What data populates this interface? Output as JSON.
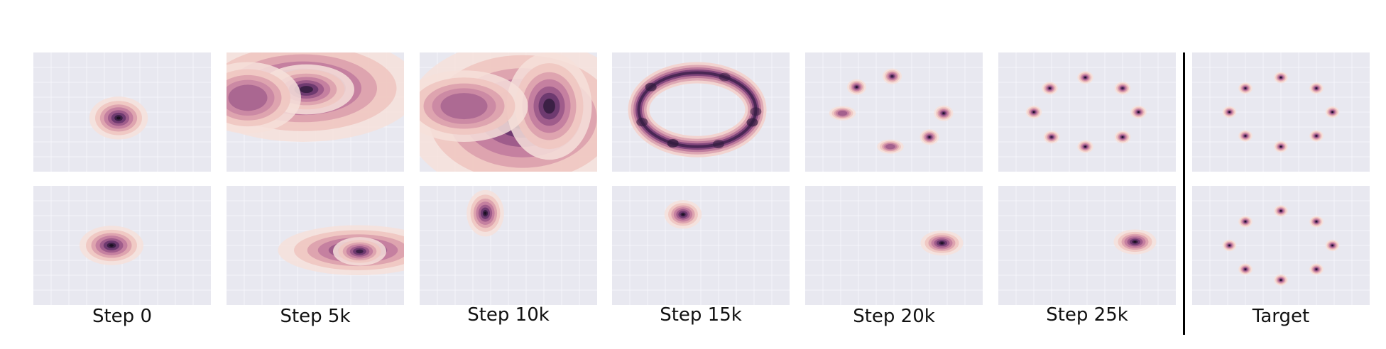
{
  "figure": {
    "columns": [
      {
        "label": "Step 0"
      },
      {
        "label": "Step 5k"
      },
      {
        "label": "Step 10k"
      },
      {
        "label": "Step 15k"
      },
      {
        "label": "Step 20k"
      },
      {
        "label": "Step 25k"
      },
      {
        "label": "Target"
      }
    ]
  },
  "chart_data": [
    {
      "type": "heatmap",
      "description_of_content": "density",
      "panel": "top-step-0",
      "row": "top",
      "column": "Step 0",
      "modes": [
        {
          "x": 0.48,
          "y": 0.55,
          "sx": 0.055,
          "sy": 0.06,
          "w": 1
        }
      ],
      "xlim": [
        0,
        1
      ],
      "ylim": [
        0,
        1
      ],
      "grid": true
    },
    {
      "type": "heatmap",
      "panel": "top-step-5k",
      "row": "top",
      "column": "Step 5k",
      "modes": [
        {
          "x": 0.43,
          "y": 0.3,
          "sx": 0.22,
          "sy": 0.15,
          "w": 1.0
        },
        {
          "x": 0.45,
          "y": 0.31,
          "sx": 0.09,
          "sy": 0.07,
          "w": 0.7
        },
        {
          "x": 0.12,
          "y": 0.38,
          "sx": 0.1,
          "sy": 0.1,
          "w": 0.35
        }
      ],
      "xlim": [
        0,
        1
      ],
      "ylim": [
        0,
        1
      ],
      "grid": true
    },
    {
      "type": "heatmap",
      "panel": "top-step-10k",
      "row": "top",
      "column": "Step 10k",
      "modes": [
        {
          "x": 0.58,
          "y": 0.55,
          "sx": 0.22,
          "sy": 0.22,
          "w": 1.0
        },
        {
          "x": 0.73,
          "y": 0.45,
          "sx": 0.08,
          "sy": 0.15,
          "w": 0.7
        },
        {
          "x": 0.25,
          "y": 0.45,
          "sx": 0.12,
          "sy": 0.1,
          "w": 0.3
        }
      ],
      "xlim": [
        0,
        1
      ],
      "ylim": [
        0,
        1
      ],
      "grid": true
    },
    {
      "type": "heatmap",
      "panel": "top-step-15k",
      "row": "top",
      "column": "Step 15k",
      "ring": {
        "cx": 0.48,
        "cy": 0.48,
        "rx": 0.33,
        "ry": 0.31,
        "width": 0.05
      },
      "xlim": [
        0,
        1
      ],
      "ylim": [
        0,
        1
      ],
      "grid": true
    },
    {
      "type": "heatmap",
      "panel": "top-step-20k",
      "row": "top",
      "column": "Step 20k",
      "modes": [
        {
          "x": 0.29,
          "y": 0.29,
          "sx": 0.018,
          "sy": 0.022,
          "w": 1
        },
        {
          "x": 0.49,
          "y": 0.2,
          "sx": 0.018,
          "sy": 0.022,
          "w": 0.8
        },
        {
          "x": 0.78,
          "y": 0.51,
          "sx": 0.018,
          "sy": 0.022,
          "w": 0.9
        },
        {
          "x": 0.7,
          "y": 0.71,
          "sx": 0.018,
          "sy": 0.022,
          "w": 1
        },
        {
          "x": 0.48,
          "y": 0.79,
          "sx": 0.025,
          "sy": 0.02,
          "w": 0.5
        },
        {
          "x": 0.21,
          "y": 0.51,
          "sx": 0.025,
          "sy": 0.02,
          "w": 0.5
        }
      ],
      "xlim": [
        0,
        1
      ],
      "ylim": [
        0,
        1
      ],
      "grid": true
    },
    {
      "type": "heatmap",
      "panel": "top-step-25k",
      "row": "top",
      "column": "Step 25k",
      "modes": [
        {
          "x": 0.29,
          "y": 0.3,
          "sx": 0.015,
          "sy": 0.018,
          "w": 1
        },
        {
          "x": 0.49,
          "y": 0.21,
          "sx": 0.015,
          "sy": 0.018,
          "w": 1
        },
        {
          "x": 0.7,
          "y": 0.3,
          "sx": 0.015,
          "sy": 0.018,
          "w": 0.8
        },
        {
          "x": 0.79,
          "y": 0.5,
          "sx": 0.015,
          "sy": 0.018,
          "w": 1
        },
        {
          "x": 0.7,
          "y": 0.71,
          "sx": 0.015,
          "sy": 0.018,
          "w": 1
        },
        {
          "x": 0.49,
          "y": 0.79,
          "sx": 0.015,
          "sy": 0.018,
          "w": 0.9
        },
        {
          "x": 0.3,
          "y": 0.71,
          "sx": 0.015,
          "sy": 0.018,
          "w": 0.8
        },
        {
          "x": 0.2,
          "y": 0.5,
          "sx": 0.015,
          "sy": 0.018,
          "w": 0.9
        }
      ],
      "xlim": [
        0,
        1
      ],
      "ylim": [
        0,
        1
      ],
      "grid": true
    },
    {
      "type": "heatmap",
      "panel": "top-target",
      "row": "top",
      "column": "Target",
      "modes": [
        {
          "x": 0.3,
          "y": 0.3,
          "sx": 0.013,
          "sy": 0.016,
          "w": 1
        },
        {
          "x": 0.5,
          "y": 0.21,
          "sx": 0.013,
          "sy": 0.016,
          "w": 1
        },
        {
          "x": 0.7,
          "y": 0.3,
          "sx": 0.013,
          "sy": 0.016,
          "w": 1
        },
        {
          "x": 0.79,
          "y": 0.5,
          "sx": 0.013,
          "sy": 0.016,
          "w": 1
        },
        {
          "x": 0.7,
          "y": 0.7,
          "sx": 0.013,
          "sy": 0.016,
          "w": 1
        },
        {
          "x": 0.5,
          "y": 0.79,
          "sx": 0.013,
          "sy": 0.016,
          "w": 1
        },
        {
          "x": 0.3,
          "y": 0.7,
          "sx": 0.013,
          "sy": 0.016,
          "w": 1
        },
        {
          "x": 0.21,
          "y": 0.5,
          "sx": 0.013,
          "sy": 0.016,
          "w": 1
        }
      ],
      "xlim": [
        0,
        1
      ],
      "ylim": [
        0,
        1
      ],
      "grid": true
    },
    {
      "type": "heatmap",
      "panel": "bottom-step-0",
      "row": "bottom",
      "column": "Step 0",
      "modes": [
        {
          "x": 0.44,
          "y": 0.5,
          "sx": 0.06,
          "sy": 0.055,
          "w": 1
        }
      ],
      "xlim": [
        0,
        1
      ],
      "ylim": [
        0,
        1
      ],
      "grid": true
    },
    {
      "type": "heatmap",
      "panel": "bottom-step-5k",
      "row": "bottom",
      "column": "Step 5k",
      "modes": [
        {
          "x": 0.74,
          "y": 0.54,
          "sx": 0.15,
          "sy": 0.07,
          "w": 1
        },
        {
          "x": 0.75,
          "y": 0.55,
          "sx": 0.05,
          "sy": 0.04,
          "w": 0.7
        }
      ],
      "xlim": [
        0,
        1
      ],
      "ylim": [
        0,
        1
      ],
      "grid": true
    },
    {
      "type": "heatmap",
      "panel": "bottom-step-10k",
      "row": "bottom",
      "column": "Step 10k",
      "modes": [
        {
          "x": 0.37,
          "y": 0.23,
          "sx": 0.035,
          "sy": 0.065,
          "w": 1
        }
      ],
      "xlim": [
        0,
        1
      ],
      "ylim": [
        0,
        1
      ],
      "grid": true
    },
    {
      "type": "heatmap",
      "panel": "bottom-step-15k",
      "row": "bottom",
      "column": "Step 15k",
      "modes": [
        {
          "x": 0.4,
          "y": 0.24,
          "sx": 0.035,
          "sy": 0.04,
          "w": 1
        }
      ],
      "xlim": [
        0,
        1
      ],
      "ylim": [
        0,
        1
      ],
      "grid": true
    },
    {
      "type": "heatmap",
      "panel": "bottom-step-20k",
      "row": "bottom",
      "column": "Step 20k",
      "modes": [
        {
          "x": 0.77,
          "y": 0.48,
          "sx": 0.04,
          "sy": 0.035,
          "w": 1
        }
      ],
      "xlim": [
        0,
        1
      ],
      "ylim": [
        0,
        1
      ],
      "grid": true
    },
    {
      "type": "heatmap",
      "panel": "bottom-step-25k",
      "row": "bottom",
      "column": "Step 25k",
      "modes": [
        {
          "x": 0.77,
          "y": 0.47,
          "sx": 0.04,
          "sy": 0.035,
          "w": 1
        }
      ],
      "xlim": [
        0,
        1
      ],
      "ylim": [
        0,
        1
      ],
      "grid": true
    },
    {
      "type": "heatmap",
      "panel": "bottom-target",
      "row": "bottom",
      "column": "Target",
      "modes": [
        {
          "x": 0.3,
          "y": 0.3,
          "sx": 0.013,
          "sy": 0.016,
          "w": 1
        },
        {
          "x": 0.5,
          "y": 0.21,
          "sx": 0.013,
          "sy": 0.016,
          "w": 1
        },
        {
          "x": 0.7,
          "y": 0.3,
          "sx": 0.013,
          "sy": 0.016,
          "w": 1
        },
        {
          "x": 0.79,
          "y": 0.5,
          "sx": 0.013,
          "sy": 0.016,
          "w": 1
        },
        {
          "x": 0.7,
          "y": 0.7,
          "sx": 0.013,
          "sy": 0.016,
          "w": 1
        },
        {
          "x": 0.5,
          "y": 0.79,
          "sx": 0.013,
          "sy": 0.016,
          "w": 1
        },
        {
          "x": 0.3,
          "y": 0.7,
          "sx": 0.013,
          "sy": 0.016,
          "w": 1
        },
        {
          "x": 0.21,
          "y": 0.5,
          "sx": 0.013,
          "sy": 0.016,
          "w": 1
        }
      ],
      "xlim": [
        0,
        1
      ],
      "ylim": [
        0,
        1
      ],
      "grid": true
    }
  ],
  "colors": {
    "panel_background": "#e8e8f0",
    "grid_line": "#f5f5fa",
    "density_low": "#f3d6d0",
    "density_mid": "#b56a95",
    "density_high": "#2a1a35",
    "divider": "#000000"
  }
}
